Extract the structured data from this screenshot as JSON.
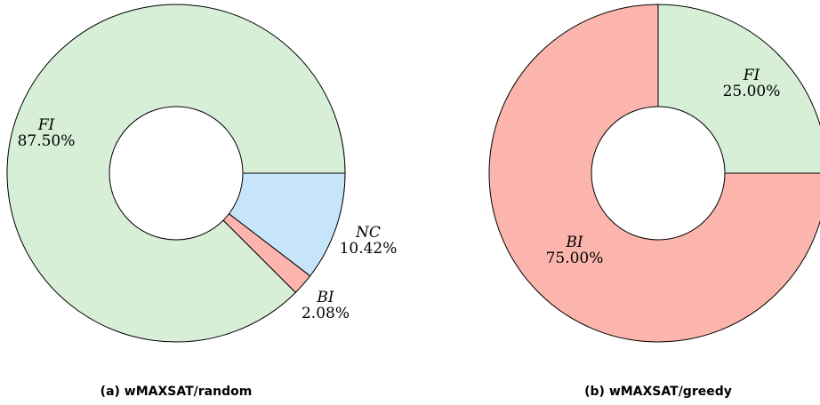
{
  "chart_data": [
    {
      "type": "pie",
      "variant": "donut",
      "caption": "(a) wMAXSAT/random",
      "slices": [
        {
          "name": "FI",
          "value": 87.5,
          "display": "87.50%",
          "color": "#d7eed7"
        },
        {
          "name": "BI",
          "value": 2.08,
          "display": "2.08%",
          "color": "#fcb5ad"
        },
        {
          "name": "NC",
          "value": 10.42,
          "display": "10.42%",
          "color": "#c7e5fa"
        }
      ]
    },
    {
      "type": "pie",
      "variant": "donut",
      "caption": "(b) wMAXSAT/greedy",
      "slices": [
        {
          "name": "FI",
          "value": 25.0,
          "display": "25.00%",
          "color": "#d7eed7"
        },
        {
          "name": "BI",
          "value": 75.0,
          "display": "75.00%",
          "color": "#fcb5ad"
        }
      ]
    }
  ]
}
